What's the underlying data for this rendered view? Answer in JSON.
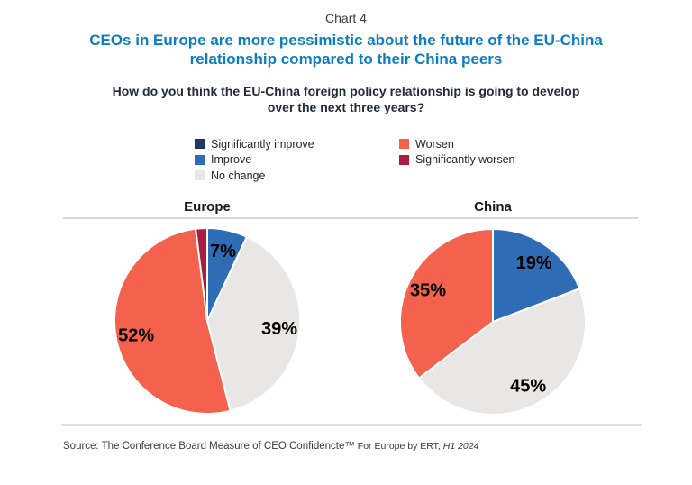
{
  "page": {
    "kicker": "Chart 4",
    "title_lines": [
      "CEOs in Europe are more pessimistic about the future of the EU-China",
      "relationship compared to their China peers"
    ],
    "question_lines": [
      "How do you think the EU-China foreign policy relationship is going to develop",
      "over the next three years?"
    ],
    "source_prefix": "Source: The Conference Board Measure of CEO Confidencte™",
    "source_mid": " For Europe by ERT,",
    "source_italic": " H1 2024"
  },
  "colors": {
    "title_blue": "#0b7dc4",
    "significantly_improve": "#1f3864",
    "improve": "#2e6cb5",
    "no_change": "#e8e7e5",
    "worsen": "#f4614d",
    "significantly_worsen": "#aa1e3f",
    "percent_label": "#000000",
    "divider": "#d9d9d9"
  },
  "legend": {
    "items": [
      {
        "label": "Significantly improve",
        "color": "#1f3864"
      },
      {
        "label": "Improve",
        "color": "#2e6cb5"
      },
      {
        "label": "No change",
        "color": "#e8e7e5"
      },
      {
        "label": "Worsen",
        "color": "#f4614d"
      },
      {
        "label": "Significantly worsen",
        "color": "#aa1e3f"
      }
    ]
  },
  "chart_data": [
    {
      "type": "pie",
      "title": "Europe",
      "start_angle_deg": 0,
      "direction": "clockwise",
      "slices": [
        {
          "name": "Improve",
          "value": 7,
          "label": "7%",
          "color": "#2e6cb5"
        },
        {
          "name": "No change",
          "value": 39,
          "label": "39%",
          "color": "#e8e7e5"
        },
        {
          "name": "Worsen",
          "value": 52,
          "label": "52%",
          "color": "#f4614d"
        },
        {
          "name": "Significantly worsen",
          "value": 2,
          "label": "",
          "color": "#aa1e3f"
        }
      ]
    },
    {
      "type": "pie",
      "title": "China",
      "start_angle_deg": 0,
      "direction": "clockwise",
      "slices": [
        {
          "name": "Improve",
          "value": 19,
          "label": "19%",
          "color": "#2e6cb5"
        },
        {
          "name": "No change",
          "value": 45,
          "label": "45%",
          "color": "#e8e7e5"
        },
        {
          "name": "Worsen",
          "value": 35,
          "label": "35%",
          "color": "#f4614d"
        }
      ]
    }
  ]
}
